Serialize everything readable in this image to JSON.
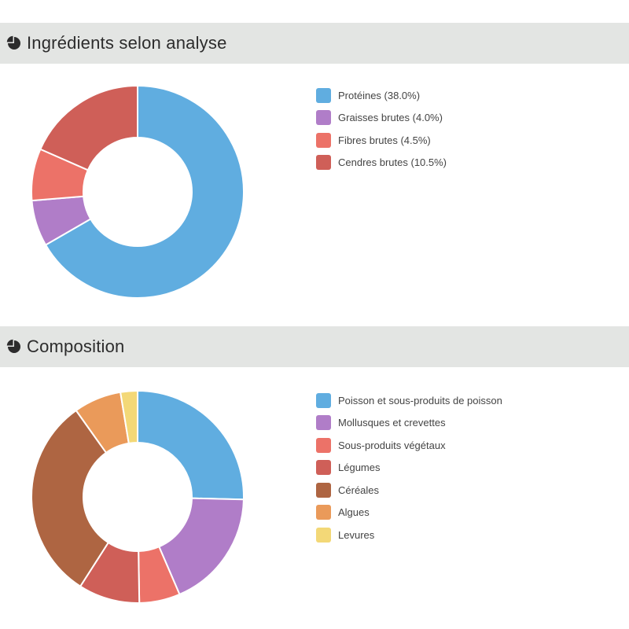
{
  "colors": {
    "blue": "#60ade0",
    "purple": "#b07dc8",
    "salmon": "#ec7268",
    "red": "#cf5f58",
    "brown": "#ae6542",
    "orange": "#ea9a5a",
    "yellow": "#f3d877"
  },
  "sections": [
    {
      "title": "Ingrédients selon analyse",
      "icon": "pie-chart-icon"
    },
    {
      "title": "Composition",
      "icon": "pie-chart-icon"
    }
  ],
  "chart_data": [
    {
      "type": "pie",
      "title": "Ingrédients selon analyse",
      "donut": true,
      "legend_position": "right",
      "categories": [
        "Protéines (38.0%)",
        "Graisses brutes (4.0%)",
        "Fibres brutes (4.5%)",
        "Cendres brutes (10.5%)"
      ],
      "values": [
        38.0,
        4.0,
        4.5,
        10.5
      ],
      "colors": [
        "#60ade0",
        "#b07dc8",
        "#ec7268",
        "#cf5f58"
      ]
    },
    {
      "type": "pie",
      "title": "Composition",
      "donut": true,
      "legend_position": "right",
      "categories": [
        "Poisson et sous-produits de poisson",
        "Mollusques et crevettes",
        "Sous-produits végétaux",
        "Légumes",
        "Céréales",
        "Algues",
        "Levures"
      ],
      "values": [
        24.5,
        17.5,
        6.0,
        9.0,
        30.0,
        7.0,
        2.5
      ],
      "colors": [
        "#60ade0",
        "#b07dc8",
        "#ec7268",
        "#cf5f58",
        "#ae6542",
        "#ea9a5a",
        "#f3d877"
      ]
    }
  ]
}
